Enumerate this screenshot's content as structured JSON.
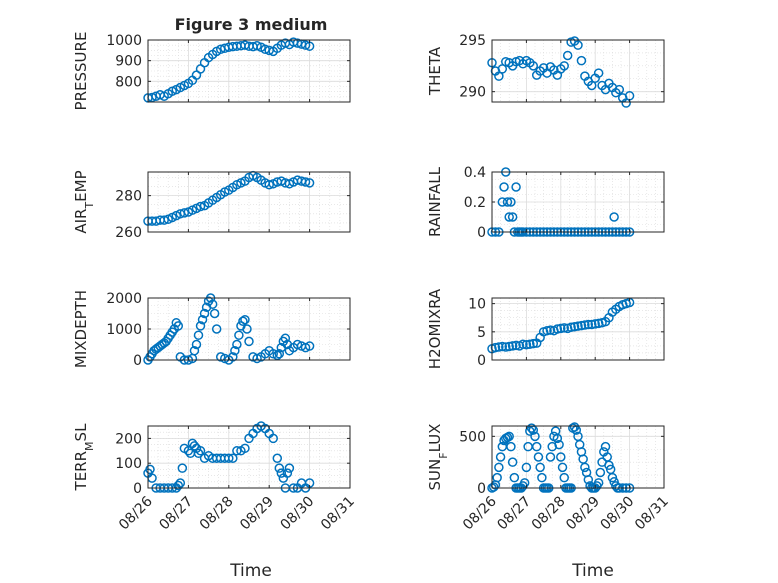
{
  "figure": {
    "title": "Figure 3 medium"
  },
  "chart_data": [
    {
      "id": "pressure",
      "type": "scatter",
      "ylabel": "PRESSURE",
      "xlabel": "",
      "ylim": [
        700,
        1000
      ],
      "yticks": [
        800,
        900,
        1000
      ],
      "xlim": [
        0,
        5
      ],
      "xticks": [
        "08/26",
        "08/27",
        "08/28",
        "08/29",
        "08/30",
        "08/31"
      ],
      "grid": true,
      "series": [
        {
          "color": "#0072BD",
          "marker": "circle",
          "x": [
            0.0,
            0.1,
            0.2,
            0.3,
            0.4,
            0.5,
            0.6,
            0.7,
            0.8,
            0.9,
            1.0,
            1.1,
            1.2,
            1.3,
            1.4,
            1.5,
            1.6,
            1.7,
            1.8,
            1.9,
            2.0,
            2.1,
            2.2,
            2.3,
            2.4,
            2.5,
            2.6,
            2.7,
            2.8,
            2.9,
            3.0,
            3.1,
            3.2,
            3.3,
            3.4,
            3.5,
            3.6,
            3.7,
            3.8,
            3.9,
            4.0
          ],
          "y": [
            720,
            722,
            728,
            735,
            728,
            740,
            752,
            760,
            770,
            780,
            790,
            805,
            830,
            860,
            890,
            915,
            930,
            945,
            955,
            960,
            965,
            968,
            970,
            972,
            975,
            970,
            968,
            972,
            965,
            955,
            950,
            945,
            960,
            975,
            985,
            978,
            990,
            985,
            980,
            975,
            970
          ]
        }
      ]
    },
    {
      "id": "theta",
      "type": "scatter",
      "ylabel": "THETA",
      "xlabel": "",
      "ylim": [
        289,
        295
      ],
      "yticks": [
        290,
        295
      ],
      "xlim": [
        0,
        5
      ],
      "xticks": [
        "08/26",
        "08/27",
        "08/28",
        "08/29",
        "08/30",
        "08/31"
      ],
      "grid": true,
      "series": [
        {
          "color": "#0072BD",
          "marker": "circle",
          "x": [
            0.0,
            0.1,
            0.2,
            0.3,
            0.4,
            0.5,
            0.6,
            0.7,
            0.8,
            0.9,
            1.0,
            1.1,
            1.2,
            1.3,
            1.4,
            1.5,
            1.6,
            1.7,
            1.8,
            1.9,
            2.0,
            2.1,
            2.2,
            2.3,
            2.4,
            2.5,
            2.6,
            2.7,
            2.8,
            2.9,
            3.0,
            3.1,
            3.2,
            3.3,
            3.4,
            3.5,
            3.6,
            3.7,
            3.8,
            3.9,
            4.0
          ],
          "y": [
            292.8,
            292.0,
            291.5,
            292.2,
            292.9,
            292.8,
            292.5,
            292.9,
            293.0,
            292.7,
            293.0,
            292.8,
            292.5,
            291.6,
            292.0,
            292.3,
            291.8,
            292.4,
            292.1,
            291.6,
            292.2,
            292.5,
            293.5,
            294.8,
            294.9,
            294.5,
            293.0,
            291.5,
            291.0,
            290.6,
            291.3,
            291.8,
            290.6,
            290.2,
            290.8,
            290.4,
            289.9,
            290.2,
            289.4,
            288.9,
            289.6
          ]
        }
      ]
    },
    {
      "id": "air_temp",
      "type": "scatter",
      "ylabel": "AIR_TEMP",
      "xlabel": "",
      "ylim": [
        260,
        293
      ],
      "yticks": [
        260,
        280
      ],
      "xlim": [
        0,
        5
      ],
      "xticks": [
        "08/26",
        "08/27",
        "08/28",
        "08/29",
        "08/30",
        "08/31"
      ],
      "grid": true,
      "series": [
        {
          "color": "#0072BD",
          "marker": "circle",
          "x": [
            0.0,
            0.1,
            0.2,
            0.3,
            0.4,
            0.5,
            0.6,
            0.7,
            0.8,
            0.9,
            1.0,
            1.1,
            1.2,
            1.3,
            1.4,
            1.5,
            1.6,
            1.7,
            1.8,
            1.9,
            2.0,
            2.1,
            2.2,
            2.3,
            2.4,
            2.5,
            2.6,
            2.7,
            2.8,
            2.9,
            3.0,
            3.1,
            3.2,
            3.3,
            3.4,
            3.5,
            3.6,
            3.7,
            3.8,
            3.9,
            4.0
          ],
          "y": [
            266,
            266,
            266,
            266.5,
            266.5,
            267,
            268,
            269,
            270,
            270.5,
            271,
            272,
            273,
            274,
            274.5,
            276,
            277.5,
            279,
            280.5,
            282,
            283,
            284.5,
            286,
            287,
            288,
            290,
            291,
            290,
            288.5,
            287,
            286,
            286.5,
            287.5,
            288,
            287,
            286.5,
            287.5,
            288.5,
            288,
            287.5,
            287
          ]
        }
      ]
    },
    {
      "id": "rainfall",
      "type": "scatter",
      "ylabel": "RAINFALL",
      "xlabel": "",
      "ylim": [
        0,
        0.4
      ],
      "yticks": [
        0,
        0.2,
        0.4
      ],
      "ytick_labels": [
        "0",
        "0.2",
        "0.4"
      ],
      "xlim": [
        0,
        5
      ],
      "xticks": [
        "08/26",
        "08/27",
        "08/28",
        "08/29",
        "08/30",
        "08/31"
      ],
      "grid": true,
      "series": [
        {
          "color": "#0072BD",
          "marker": "circle",
          "x": [
            0.0,
            0.1,
            0.2,
            0.3,
            0.35,
            0.4,
            0.45,
            0.5,
            0.55,
            0.6,
            0.65,
            0.7,
            0.75,
            0.8,
            0.85,
            0.9,
            1.0,
            1.1,
            1.2,
            1.3,
            1.4,
            1.5,
            1.6,
            1.7,
            1.8,
            1.9,
            2.0,
            2.1,
            2.2,
            2.3,
            2.4,
            2.5,
            2.6,
            2.7,
            2.8,
            2.9,
            3.0,
            3.1,
            3.2,
            3.3,
            3.4,
            3.5,
            3.55,
            3.6,
            3.7,
            3.8,
            3.9,
            4.0
          ],
          "y": [
            0,
            0,
            0,
            0.2,
            0.3,
            0.4,
            0.2,
            0.1,
            0.2,
            0.1,
            0,
            0.3,
            0,
            0,
            0,
            0,
            0,
            0,
            0,
            0,
            0,
            0,
            0,
            0,
            0,
            0,
            0,
            0,
            0,
            0,
            0,
            0,
            0,
            0,
            0,
            0,
            0,
            0,
            0,
            0,
            0,
            0,
            0.1,
            0,
            0,
            0,
            0,
            0
          ]
        }
      ]
    },
    {
      "id": "mixdepth",
      "type": "scatter",
      "ylabel": "MIXDEPTH",
      "xlabel": "",
      "ylim": [
        0,
        2000
      ],
      "yticks": [
        0,
        1000,
        2000
      ],
      "xlim": [
        0,
        5
      ],
      "xticks": [
        "08/26",
        "08/27",
        "08/28",
        "08/29",
        "08/30",
        "08/31"
      ],
      "grid": true,
      "series": [
        {
          "color": "#0072BD",
          "marker": "circle",
          "x": [
            0.0,
            0.05,
            0.1,
            0.15,
            0.2,
            0.25,
            0.3,
            0.35,
            0.4,
            0.45,
            0.5,
            0.55,
            0.6,
            0.65,
            0.7,
            0.75,
            0.8,
            0.9,
            1.0,
            1.1,
            1.15,
            1.2,
            1.25,
            1.3,
            1.35,
            1.4,
            1.45,
            1.5,
            1.55,
            1.6,
            1.65,
            1.7,
            1.8,
            1.9,
            2.0,
            2.1,
            2.15,
            2.2,
            2.25,
            2.3,
            2.35,
            2.4,
            2.45,
            2.5,
            2.6,
            2.7,
            2.8,
            2.9,
            3.0,
            3.1,
            3.2,
            3.25,
            3.3,
            3.35,
            3.4,
            3.45,
            3.5,
            3.6,
            3.7,
            3.8,
            3.9,
            4.0
          ],
          "y": [
            0,
            100,
            200,
            300,
            350,
            400,
            450,
            500,
            550,
            600,
            700,
            800,
            900,
            1000,
            1200,
            1100,
            100,
            0,
            0,
            50,
            300,
            500,
            800,
            1100,
            1300,
            1500,
            1700,
            1900,
            2000,
            1800,
            1500,
            1000,
            100,
            50,
            0,
            100,
            300,
            500,
            800,
            1100,
            1250,
            1300,
            1000,
            600,
            100,
            50,
            100,
            200,
            300,
            200,
            150,
            200,
            400,
            600,
            700,
            500,
            300,
            400,
            500,
            450,
            400,
            450
          ]
        }
      ]
    },
    {
      "id": "h2omixra",
      "type": "scatter",
      "ylabel": "H2OMIXRA",
      "xlabel": "",
      "ylim": [
        0,
        11
      ],
      "yticks": [
        0,
        5,
        10
      ],
      "xlim": [
        0,
        5
      ],
      "xticks": [
        "08/26",
        "08/27",
        "08/28",
        "08/29",
        "08/30",
        "08/31"
      ],
      "grid": true,
      "series": [
        {
          "color": "#0072BD",
          "marker": "circle",
          "x": [
            0.0,
            0.1,
            0.2,
            0.3,
            0.4,
            0.5,
            0.6,
            0.7,
            0.8,
            0.9,
            1.0,
            1.1,
            1.2,
            1.3,
            1.4,
            1.5,
            1.6,
            1.7,
            1.8,
            1.9,
            2.0,
            2.1,
            2.2,
            2.3,
            2.4,
            2.5,
            2.6,
            2.7,
            2.8,
            2.9,
            3.0,
            3.1,
            3.2,
            3.3,
            3.4,
            3.5,
            3.6,
            3.7,
            3.8,
            3.9,
            4.0
          ],
          "y": [
            2.0,
            2.2,
            2.3,
            2.4,
            2.3,
            2.4,
            2.5,
            2.6,
            2.5,
            2.8,
            2.7,
            2.8,
            2.9,
            3.0,
            4.0,
            5.0,
            5.2,
            5.3,
            5.2,
            5.5,
            5.6,
            5.7,
            5.6,
            5.8,
            5.9,
            6.0,
            6.1,
            6.2,
            6.3,
            6.3,
            6.4,
            6.5,
            6.6,
            6.8,
            7.5,
            8.5,
            9.0,
            9.5,
            9.8,
            10.0,
            10.2
          ]
        }
      ]
    },
    {
      "id": "terr_msl",
      "type": "scatter",
      "ylabel": "TERR_MSL",
      "xlabel": "Time",
      "ylim": [
        0,
        250
      ],
      "yticks": [
        0,
        100,
        200
      ],
      "xlim": [
        0,
        5
      ],
      "xticks": [
        "08/26",
        "08/27",
        "08/28",
        "08/29",
        "08/30",
        "08/31"
      ],
      "grid": true,
      "series": [
        {
          "color": "#0072BD",
          "marker": "circle",
          "x": [
            0.0,
            0.05,
            0.1,
            0.2,
            0.3,
            0.4,
            0.5,
            0.6,
            0.7,
            0.75,
            0.8,
            0.85,
            0.9,
            1.0,
            1.05,
            1.1,
            1.15,
            1.2,
            1.25,
            1.3,
            1.4,
            1.5,
            1.6,
            1.7,
            1.8,
            1.9,
            2.0,
            2.1,
            2.2,
            2.3,
            2.4,
            2.5,
            2.6,
            2.7,
            2.8,
            2.9,
            3.0,
            3.1,
            3.2,
            3.25,
            3.3,
            3.35,
            3.4,
            3.45,
            3.5,
            3.6,
            3.7,
            3.8,
            3.9,
            4.0
          ],
          "y": [
            60,
            75,
            40,
            0,
            0,
            0,
            0,
            0,
            0,
            10,
            20,
            80,
            160,
            150,
            140,
            180,
            170,
            160,
            140,
            150,
            120,
            130,
            120,
            120,
            120,
            120,
            120,
            120,
            150,
            150,
            160,
            200,
            220,
            240,
            250,
            240,
            220,
            200,
            120,
            80,
            60,
            40,
            0,
            60,
            80,
            0,
            0,
            20,
            0,
            20
          ]
        }
      ]
    },
    {
      "id": "sun_flux",
      "type": "scatter",
      "ylabel": "SUN_FLUX",
      "xlabel": "Time",
      "ylim": [
        0,
        600
      ],
      "yticks": [
        0,
        500
      ],
      "xlim": [
        0,
        5
      ],
      "xticks": [
        "08/26",
        "08/27",
        "08/28",
        "08/29",
        "08/30",
        "08/31"
      ],
      "grid": true,
      "series": [
        {
          "color": "#0072BD",
          "marker": "circle",
          "x": [
            0.0,
            0.05,
            0.1,
            0.15,
            0.2,
            0.25,
            0.3,
            0.35,
            0.4,
            0.45,
            0.5,
            0.55,
            0.6,
            0.65,
            0.7,
            0.75,
            0.8,
            0.85,
            0.9,
            0.95,
            1.0,
            1.05,
            1.1,
            1.15,
            1.2,
            1.25,
            1.3,
            1.35,
            1.4,
            1.45,
            1.5,
            1.55,
            1.6,
            1.65,
            1.7,
            1.75,
            1.8,
            1.85,
            1.9,
            1.95,
            2.0,
            2.05,
            2.1,
            2.15,
            2.2,
            2.25,
            2.3,
            2.35,
            2.4,
            2.45,
            2.5,
            2.55,
            2.6,
            2.65,
            2.7,
            2.75,
            2.8,
            2.85,
            2.9,
            2.95,
            3.0,
            3.05,
            3.1,
            3.15,
            3.2,
            3.25,
            3.3,
            3.35,
            3.4,
            3.45,
            3.5,
            3.55,
            3.6,
            3.65,
            3.7,
            3.8,
            3.9,
            4.0
          ],
          "y": [
            0,
            10,
            30,
            100,
            200,
            300,
            400,
            460,
            480,
            490,
            500,
            400,
            250,
            100,
            0,
            0,
            0,
            0,
            20,
            50,
            200,
            400,
            550,
            580,
            560,
            500,
            400,
            300,
            200,
            100,
            0,
            0,
            0,
            0,
            300,
            400,
            500,
            550,
            480,
            420,
            300,
            200,
            100,
            0,
            0,
            0,
            0,
            580,
            590,
            560,
            500,
            420,
            350,
            280,
            200,
            150,
            80,
            20,
            0,
            0,
            0,
            20,
            50,
            150,
            250,
            350,
            400,
            300,
            220,
            180,
            100,
            60,
            20,
            0,
            0,
            0,
            0,
            0
          ]
        }
      ]
    }
  ]
}
